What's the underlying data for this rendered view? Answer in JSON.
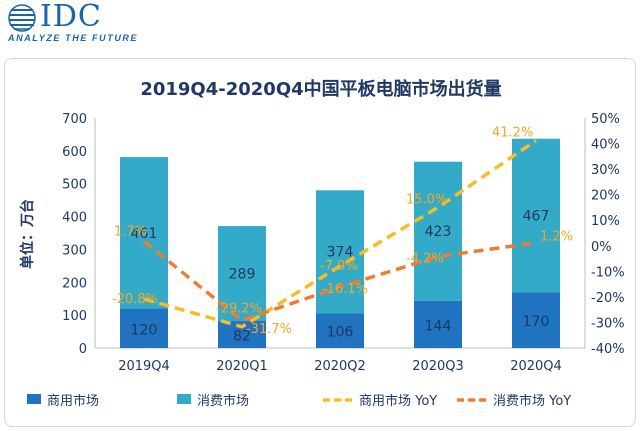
{
  "header": {
    "logo_text": "IDC",
    "tagline": "ANALYZE THE FUTURE"
  },
  "colors": {
    "commercial": "#1f73c0",
    "consumer": "#33aac8",
    "commercial_yoy": "#f6bd26",
    "consumer_yoy": "#ed7d31",
    "text": "#1f3864",
    "label_orange": "#f5a623"
  },
  "chart_data": {
    "type": "bar",
    "title": "2019Q4-2020Q4中国平板电脑市场出货量",
    "ylabel": "单位：万台",
    "categories": [
      "2019Q4",
      "2020Q1",
      "2020Q2",
      "2020Q3",
      "2020Q4"
    ],
    "ylim": [
      0,
      700
    ],
    "y_ticks": [
      "0",
      "100",
      "200",
      "300",
      "400",
      "500",
      "600",
      "700"
    ],
    "y2lim": [
      -40,
      50
    ],
    "y2_ticks": [
      "-40%",
      "-30%",
      "-20%",
      "-10%",
      "0%",
      "10%",
      "20%",
      "30%",
      "40%",
      "50%"
    ],
    "stacked": true,
    "series": [
      {
        "name": "商用市场",
        "kind": "bar",
        "values": [
          120,
          82,
          106,
          144,
          170
        ],
        "labels": [
          "120",
          "82",
          "106",
          "144",
          "170"
        ]
      },
      {
        "name": "消费市场",
        "kind": "bar",
        "values": [
          461,
          289,
          374,
          423,
          467
        ],
        "labels": [
          "461",
          "289",
          "374",
          "423",
          "467"
        ]
      },
      {
        "name": "商用市场 YoY",
        "kind": "line",
        "axis": "right",
        "values": [
          -20.8,
          -31.7,
          -7.9,
          15.0,
          41.2
        ],
        "labels": [
          "-20.8%",
          "-31.7%",
          "-7.9%",
          "15.0%",
          "41.2%"
        ]
      },
      {
        "name": "消费市场 YoY",
        "kind": "line",
        "axis": "right",
        "values": [
          1.7,
          -29.2,
          -16.1,
          -4.2,
          1.2
        ],
        "labels": [
          "1.7%",
          "-29.2%",
          "-16.1%",
          "-4.2%",
          "1.2%"
        ]
      }
    ],
    "legend": [
      "商用市场",
      "消费市场",
      "商用市场 YoY",
      "消费市场 YoY"
    ],
    "legend_position": "bottom",
    "grid": false
  }
}
